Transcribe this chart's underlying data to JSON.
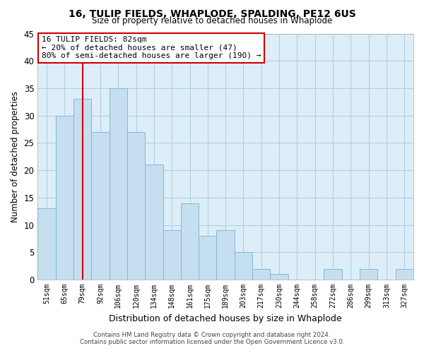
{
  "title": "16, TULIP FIELDS, WHAPLODE, SPALDING, PE12 6US",
  "subtitle": "Size of property relative to detached houses in Whaplode",
  "xlabel": "Distribution of detached houses by size in Whaplode",
  "ylabel": "Number of detached properties",
  "bin_labels": [
    "51sqm",
    "65sqm",
    "79sqm",
    "92sqm",
    "106sqm",
    "120sqm",
    "134sqm",
    "148sqm",
    "161sqm",
    "175sqm",
    "189sqm",
    "203sqm",
    "217sqm",
    "230sqm",
    "244sqm",
    "258sqm",
    "272sqm",
    "286sqm",
    "299sqm",
    "313sqm",
    "327sqm"
  ],
  "bar_heights": [
    13,
    30,
    33,
    27,
    35,
    27,
    21,
    9,
    14,
    8,
    9,
    5,
    2,
    1,
    0,
    0,
    2,
    0,
    2,
    0,
    2
  ],
  "bar_color": "#c5dff0",
  "bar_edge_color": "#7fb9d9",
  "vline_x_index": 2,
  "vline_color": "#cc0000",
  "ylim": [
    0,
    45
  ],
  "yticks": [
    0,
    5,
    10,
    15,
    20,
    25,
    30,
    35,
    40,
    45
  ],
  "annotation_title": "16 TULIP FIELDS: 82sqm",
  "annotation_line1": "← 20% of detached houses are smaller (47)",
  "annotation_line2": "80% of semi-detached houses are larger (190) →",
  "annotation_box_color": "#ffffff",
  "annotation_box_edge": "#cc0000",
  "footer_line1": "Contains HM Land Registry data © Crown copyright and database right 2024.",
  "footer_line2": "Contains public sector information licensed under the Open Government Licence v3.0.",
  "background_color": "#ffffff",
  "plot_bg_color": "#ddeef8",
  "grid_color": "#b0cfe0"
}
